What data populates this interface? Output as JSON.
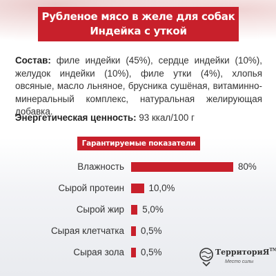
{
  "title": {
    "line1": "Рубленое мясо в желе для собак",
    "line2": "Индейка с уткой"
  },
  "composition": {
    "label": "Состав:",
    "text": " филе индейки (45%), сердце индейки (10%), желудок индейки (10%), филе утки (4%), хлопья овсяные, масло льняное, брусника сушёная, витаминно-минеральный комплекс, натуральная желирующая добавка."
  },
  "energy": {
    "label": "Энергетическая ценность:",
    "value": " 93 ккал/100 г"
  },
  "chart_data": {
    "type": "bar",
    "orientation": "horizontal",
    "title": "Гарантируемые показатели",
    "categories": [
      "Влажность",
      "Сырой протеин",
      "Сырой жир",
      "Сырая клетчатка",
      "Сырая зола"
    ],
    "values": [
      80,
      10.0,
      5.0,
      0.5,
      0.5
    ],
    "value_labels": [
      "80%",
      "10,0%",
      "5,0%",
      "0,5%",
      "0,5%"
    ],
    "xlim": [
      0,
      80
    ],
    "bar_color": "#c8202b",
    "grid": false
  },
  "logo": {
    "name": "ТерриториЯ",
    "tm": "TM",
    "subtitle": "Место силы"
  },
  "colors": {
    "accent": "#c8202b"
  }
}
